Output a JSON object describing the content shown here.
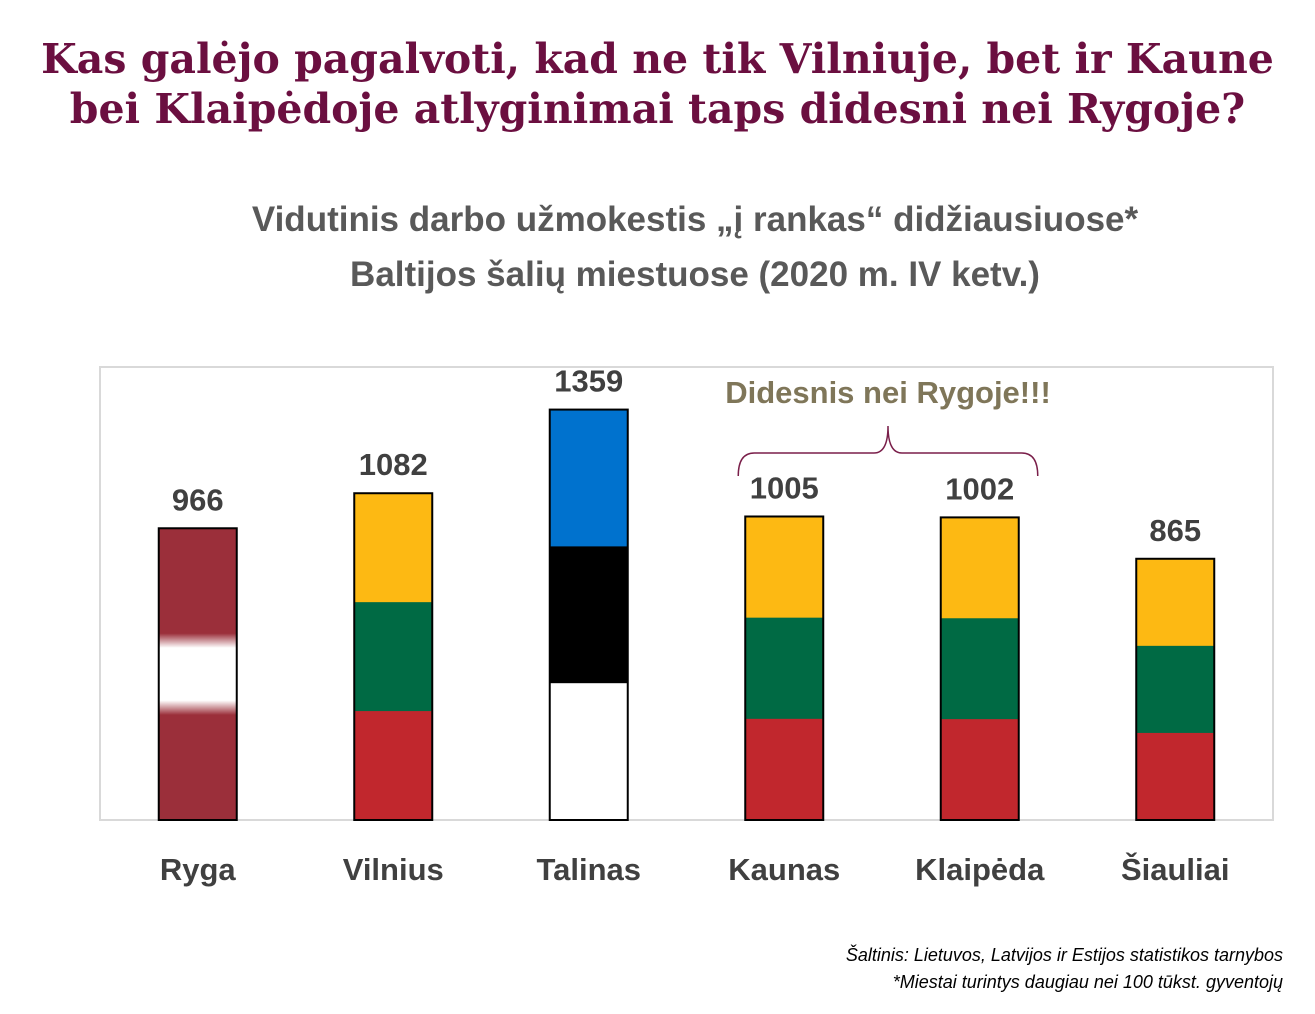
{
  "headline": {
    "line1": "Kas galėjo pagalvoti, kad ne tik Vilniuje, bet ir Kaune",
    "line2": "bei Klaipėdoje atlyginimai taps didesni nei Rygoje?"
  },
  "chart_data": {
    "type": "bar",
    "title": "Vidutinis darbo užmokestis „į rankas“ didžiausiuose* Baltijos šalių miestuose (2020 m. IV ketv.)",
    "title_lines": [
      "Vidutinis darbo užmokestis „į rankas“ didžiausiuose*",
      "Baltijos šalių miestuose (2020 m. IV ketv.)"
    ],
    "xlabel": "",
    "ylabel": "",
    "ylim": [
      0,
      1500
    ],
    "grid": false,
    "categories": [
      "Ryga",
      "Vilnius",
      "Talinas",
      "Kaunas",
      "Klaipėda",
      "Šiauliai"
    ],
    "values": [
      966,
      1082,
      1359,
      1005,
      1002,
      865
    ],
    "data_labels": [
      "966",
      "1082",
      "1359",
      "1005",
      "1002",
      "865"
    ],
    "bar_flags": [
      "latvia",
      "lithuania",
      "estonia",
      "lithuania",
      "lithuania",
      "lithuania"
    ],
    "annotation": {
      "text": "Didesnis nei Rygoje!!!",
      "spans_categories": [
        "Kaunas",
        "Klaipėda"
      ]
    }
  },
  "flags": {
    "latvia": [
      "#9b2f3a",
      "#ffffff",
      "#9b2f3a"
    ],
    "lithuania": [
      "#fdb913",
      "#006a44",
      "#c1272d"
    ],
    "estonia": [
      "#0072ce",
      "#000000",
      "#ffffff"
    ]
  },
  "colors": {
    "headline": "#6b0f40",
    "subtitle": "#595959",
    "labels": "#404040",
    "annotation": "#7f7659",
    "brace": "#7a1f4a",
    "plot_border": "#d9d9d9"
  },
  "source": {
    "line1": "Šaltinis: Lietuvos, Latvijos ir Estijos statistikos tarnybos",
    "line2": "*Miestai turintys daugiau nei 100 tūkst. gyventojų"
  }
}
